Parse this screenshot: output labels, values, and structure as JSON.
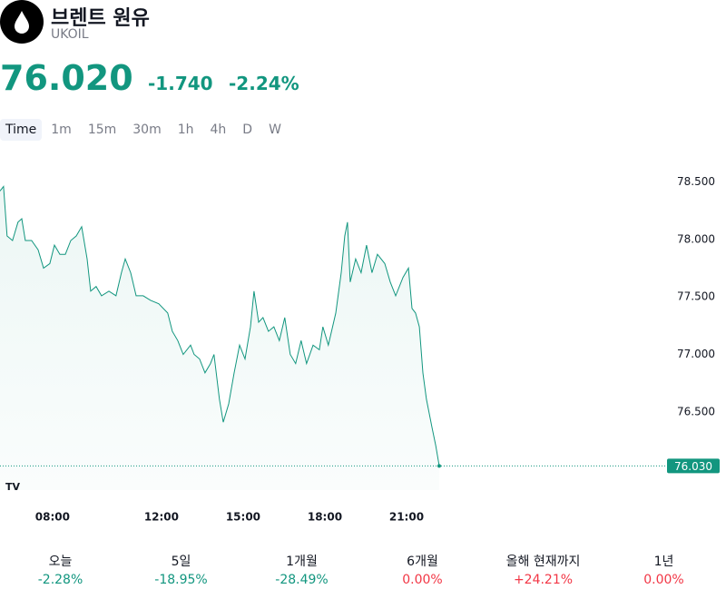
{
  "header": {
    "title": "브렌트 원유",
    "symbol": "UKOIL",
    "price": "76.020",
    "change": "-1.740",
    "change_pct": "-2.24%"
  },
  "tabs": [
    "Time",
    "1m",
    "15m",
    "30m",
    "1h",
    "4h",
    "D",
    "W"
  ],
  "chart_data": {
    "type": "line",
    "color": "#12967f",
    "x": [
      6.07,
      6.2,
      6.33,
      6.53,
      6.73,
      6.87,
      7.0,
      7.23,
      7.47,
      7.67,
      7.9,
      8.07,
      8.27,
      8.47,
      8.67,
      8.87,
      9.07,
      9.27,
      9.4,
      9.6,
      9.8,
      10.07,
      10.33,
      10.53,
      10.67,
      10.87,
      11.07,
      11.33,
      11.6,
      11.9,
      12.23,
      12.4,
      12.6,
      12.8,
      13.07,
      13.2,
      13.4,
      13.6,
      13.8,
      13.93,
      14.13,
      14.27,
      14.47,
      14.67,
      14.87,
      15.07,
      15.27,
      15.4,
      15.57,
      15.73,
      15.93,
      16.13,
      16.33,
      16.53,
      16.73,
      16.93,
      17.13,
      17.33,
      17.57,
      17.8,
      17.93,
      18.13,
      18.4,
      18.6,
      18.73,
      18.83,
      18.93,
      19.13,
      19.33,
      19.53,
      19.73,
      19.93,
      20.2,
      20.4,
      20.6,
      20.87,
      21.07,
      21.2,
      21.33,
      21.47,
      21.6,
      21.73,
      21.93,
      22.07,
      22.2
    ],
    "values": [
      78.42,
      78.46,
      78.03,
      77.99,
      78.15,
      78.18,
      77.99,
      77.99,
      77.91,
      77.75,
      77.79,
      77.95,
      77.87,
      77.87,
      77.99,
      78.03,
      78.11,
      77.83,
      77.55,
      77.59,
      77.51,
      77.55,
      77.51,
      77.71,
      77.83,
      77.71,
      77.51,
      77.51,
      77.47,
      77.44,
      77.36,
      77.2,
      77.12,
      77.0,
      77.08,
      77.0,
      76.96,
      76.84,
      76.92,
      77.0,
      76.61,
      76.41,
      76.57,
      76.84,
      77.08,
      76.96,
      77.24,
      77.55,
      77.28,
      77.32,
      77.2,
      77.24,
      77.12,
      77.32,
      77.0,
      76.92,
      77.12,
      76.92,
      77.08,
      77.04,
      77.24,
      77.08,
      77.36,
      77.71,
      78.03,
      78.15,
      77.63,
      77.83,
      77.71,
      77.95,
      77.71,
      77.87,
      77.79,
      77.63,
      77.51,
      77.67,
      77.75,
      77.4,
      77.36,
      77.24,
      76.84,
      76.61,
      76.37,
      76.21,
      76.03
    ],
    "xlim": [
      6.07,
      30.4
    ],
    "xticks": [
      {
        "value": 8,
        "label": "08:00"
      },
      {
        "value": 12,
        "label": "12:00"
      },
      {
        "value": 15,
        "label": "15:00"
      },
      {
        "value": 18,
        "label": "18:00"
      },
      {
        "value": 21,
        "label": "21:00"
      }
    ],
    "ylim": [
      75.82,
      78.74
    ],
    "yticks": [
      {
        "value": 76.5,
        "label": "76.500"
      },
      {
        "value": 77,
        "label": "77.000"
      },
      {
        "value": 77.5,
        "label": "77.500"
      },
      {
        "value": 78,
        "label": "78.000"
      },
      {
        "value": 78.5,
        "label": "78.500"
      }
    ],
    "last_price": {
      "value": 76.03,
      "label": "76.030"
    }
  },
  "performance": [
    {
      "label": "오늘",
      "value": "-2.28%",
      "color": "#12967f"
    },
    {
      "label": "5일",
      "value": "-18.95%",
      "color": "#12967f"
    },
    {
      "label": "1개월",
      "value": "-28.49%",
      "color": "#12967f"
    },
    {
      "label": "6개월",
      "value": "0.00%",
      "color": "#f23645"
    },
    {
      "label": "올해 현재까지",
      "value": "+24.21%",
      "color": "#f23645"
    },
    {
      "label": "1년",
      "value": "0.00%",
      "color": "#f23645"
    }
  ]
}
